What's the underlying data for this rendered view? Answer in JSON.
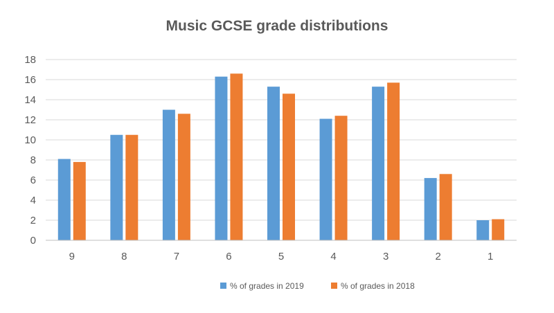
{
  "chart_data": {
    "type": "bar",
    "title": "Music GCSE grade distributions",
    "xlabel": "",
    "ylabel": "",
    "categories": [
      "9",
      "8",
      "7",
      "6",
      "5",
      "4",
      "3",
      "2",
      "1"
    ],
    "series": [
      {
        "name": "% of grades in 2019",
        "color": "#5B9BD5",
        "values": [
          8.1,
          10.5,
          13.0,
          16.3,
          15.3,
          12.1,
          15.3,
          6.2,
          2.0
        ]
      },
      {
        "name": "% of grades in 2018",
        "color": "#ED7D31",
        "values": [
          7.8,
          10.5,
          12.6,
          16.6,
          14.6,
          12.4,
          15.7,
          6.6,
          2.1
        ]
      }
    ],
    "ylim": [
      0,
      18
    ],
    "yticks": [
      0,
      2,
      4,
      6,
      8,
      10,
      12,
      14,
      16,
      18
    ],
    "grid": true,
    "legend_position": "bottom"
  }
}
